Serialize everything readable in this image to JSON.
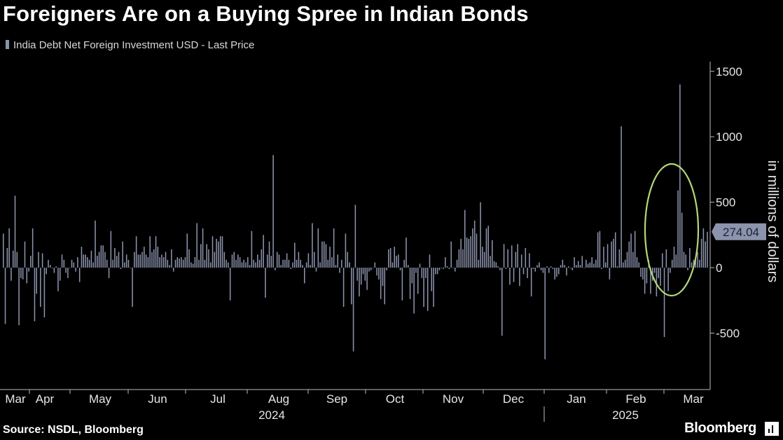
{
  "header": {
    "title": "Foreigners Are on a Buying Spree in Indian Bonds",
    "legend": "India Debt Net Foreign Investment USD - Last Price"
  },
  "footer": {
    "source": "Source: NSDL, Bloomberg",
    "brand": "Bloomberg"
  },
  "colors": {
    "bar": "#8c93ad",
    "circle": "#b5d77a",
    "axis": "#bdbdbd",
    "callout_bg": "#8c93ad"
  },
  "chart_data": {
    "type": "bar",
    "ylabel": "in millions of dollars",
    "ylim": [
      -820,
      1620
    ],
    "yticks": [
      -500,
      0,
      500,
      1000,
      1500
    ],
    "last_value_label": "274.04",
    "months": [
      "Mar",
      "Apr",
      "May",
      "Jun",
      "Jul",
      "Aug",
      "Sep",
      "Oct",
      "Nov",
      "Dec",
      "Jan",
      "Feb",
      "Mar"
    ],
    "years": [
      "2024",
      "2025"
    ],
    "series": [
      {
        "values": [
          260,
          -430,
          150,
          300,
          -100,
          130,
          550,
          120,
          -440,
          -80,
          -90,
          200,
          -120,
          -30,
          90,
          300,
          -410,
          -200,
          120,
          -300,
          110,
          -380,
          -50,
          60,
          20,
          0,
          -40,
          10,
          -180,
          -100,
          100,
          60,
          -40,
          -80,
          0,
          60,
          40,
          -30,
          80,
          -110,
          160,
          100,
          100,
          80,
          60,
          130,
          40,
          360,
          90,
          120,
          170,
          170,
          120,
          60,
          -80,
          280,
          60,
          150,
          90,
          120,
          -10,
          200,
          40,
          100,
          60,
          0,
          -300,
          120,
          240,
          100,
          100,
          120,
          160,
          100,
          80,
          240,
          120,
          140,
          240,
          160,
          80,
          100,
          80,
          120,
          60,
          20,
          140,
          -30,
          60,
          80,
          70,
          80,
          60,
          80,
          260,
          140,
          40,
          30,
          80,
          340,
          60,
          180,
          300,
          60,
          180,
          140,
          40,
          240,
          120,
          220,
          200,
          240,
          240,
          120,
          60,
          40,
          -250,
          100,
          120,
          60,
          100,
          80,
          40,
          60,
          40,
          80,
          20,
          280,
          60,
          40,
          100,
          60,
          140,
          250,
          -230,
          100,
          200,
          90,
          860,
          -20,
          120,
          100,
          20,
          60,
          60,
          110,
          60,
          -10,
          40,
          190,
          60,
          120,
          60,
          20,
          -120,
          40,
          110,
          20,
          340,
          120,
          -30,
          300,
          40,
          200,
          200,
          180,
          60,
          160,
          80,
          300,
          20,
          100,
          -40,
          60,
          -300,
          260,
          120,
          40,
          -280,
          -640,
          480,
          -100,
          -220,
          -130,
          -50,
          -100,
          -170,
          -30,
          -20,
          0,
          40,
          -60,
          -90,
          -240,
          -140,
          -280,
          -20,
          140,
          150,
          40,
          160,
          90,
          100,
          -20,
          -250,
          60,
          230,
          20,
          -240,
          -120,
          -350,
          -40,
          -200,
          30,
          -80,
          -300,
          -80,
          -330,
          100,
          -180,
          -300,
          -50,
          -50,
          -20,
          0,
          -10,
          80,
          10,
          -10,
          200,
          0,
          -30,
          60,
          140,
          220,
          140,
          440,
          230,
          220,
          240,
          300,
          360,
          260,
          60,
          500,
          160,
          120,
          300,
          320,
          90,
          210,
          50,
          40,
          10,
          -20,
          -520,
          180,
          -10,
          140,
          -130,
          170,
          -110,
          120,
          180,
          -140,
          100,
          -50,
          150,
          -80,
          110,
          -220,
          -10,
          -30,
          20,
          40,
          -20,
          -40,
          -700,
          10,
          -40,
          10,
          -10,
          -90,
          -70,
          -50,
          20,
          60,
          20,
          -60,
          10,
          0,
          -20,
          80,
          20,
          50,
          20,
          90,
          0,
          60,
          30,
          40,
          80,
          30,
          60,
          270,
          280,
          -10,
          160,
          40,
          180,
          -90,
          200,
          220,
          270,
          10,
          140,
          1080,
          40,
          60,
          120,
          200,
          260,
          120,
          280,
          80,
          40,
          -70,
          -90,
          -200,
          -120,
          60,
          -200,
          -100,
          -40,
          -220,
          -80,
          -140,
          110,
          -530,
          140,
          -180,
          -40,
          60,
          160,
          100,
          590,
          1400,
          420,
          120,
          100,
          -20,
          150,
          40,
          60,
          60,
          120,
          60,
          220,
          300,
          200,
          274.04
        ]
      }
    ]
  }
}
